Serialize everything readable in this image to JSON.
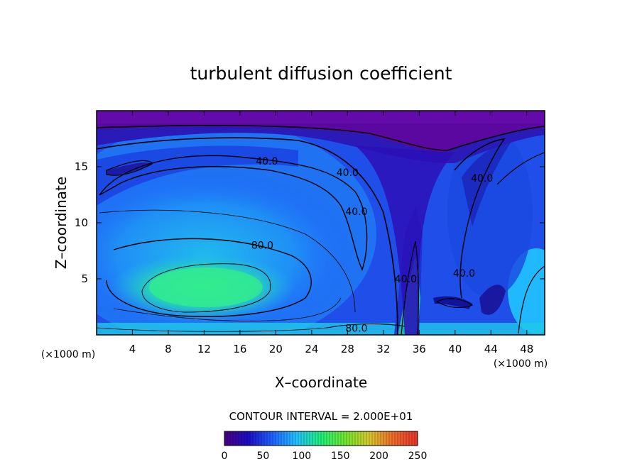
{
  "chart_data": {
    "type": "heatmap",
    "title": "turbulent diffusion coefficient",
    "xlabel": "X–coordinate",
    "ylabel": "Z–coordinate",
    "x_unit": "(×1000 m)",
    "y_unit": "(×1000 m)",
    "xlim": [
      0,
      50
    ],
    "ylim": [
      0,
      20
    ],
    "x_ticks": [
      4,
      8,
      12,
      16,
      20,
      24,
      28,
      32,
      36,
      40,
      44,
      48
    ],
    "y_ticks": [
      5,
      10,
      15
    ],
    "contour_interval_text": "CONTOUR INTERVAL = 2.000E+01",
    "contour_labels": [
      {
        "text": "40.0",
        "x": 19,
        "z": 15.5
      },
      {
        "text": "40.0",
        "x": 28,
        "z": 14.5
      },
      {
        "text": "40.0",
        "x": 29,
        "z": 11.0
      },
      {
        "text": "80.0",
        "x": 18.5,
        "z": 8.0
      },
      {
        "text": "40.0",
        "x": 43,
        "z": 14.0
      },
      {
        "text": "40.0",
        "x": 41,
        "z": 5.5
      },
      {
        "text": "40.0",
        "x": 34.5,
        "z": 5.0
      },
      {
        "text": "80.0",
        "x": 29,
        "z": 0.6
      }
    ],
    "colorbar": {
      "min": 0,
      "max": 250,
      "ticks": [
        0,
        50,
        100,
        150,
        200,
        250
      ],
      "colors": [
        "#4b0082",
        "#1a0ec8",
        "#1f63ff",
        "#21c4ff",
        "#1ff07a",
        "#6fe82d",
        "#d8c82c",
        "#f06b2a",
        "#e83329"
      ]
    },
    "field_features": [
      {
        "name": "low-level maximum",
        "x_center": 12,
        "z_center": 4.5,
        "peak": 120
      },
      {
        "name": "upper minimum",
        "z_above": 18.5,
        "value": 0
      }
    ]
  }
}
